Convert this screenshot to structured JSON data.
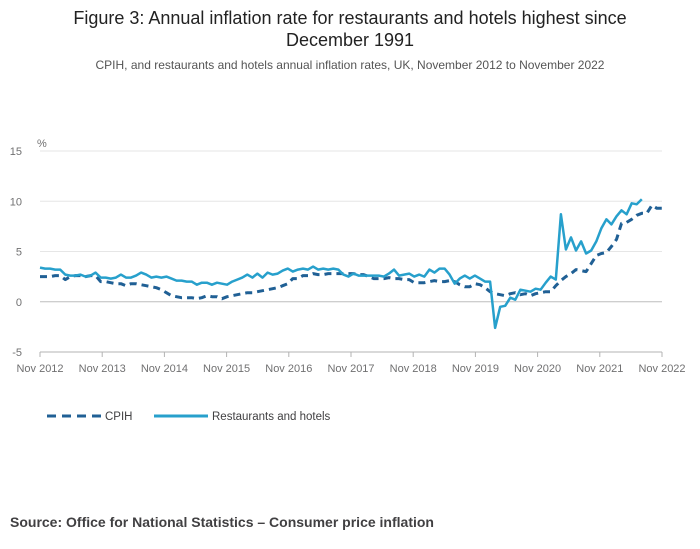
{
  "title_line1": "Figure 3: Annual inflation rate for restaurants and hotels highest since",
  "title_line2": "December 1991",
  "subtitle": "CPIH, and restaurants and hotels annual inflation rates, UK, November 2012 to November 2022",
  "source": "Source: Office for National Statistics – Consumer price inflation",
  "colors": {
    "cpih": "#206095",
    "restaurants": "#27A0CC",
    "axis": "#bebebe",
    "grid": "#e6e6e6"
  },
  "chart_data": {
    "type": "line",
    "title": "Figure 3: Annual inflation rate for restaurants and hotels highest since December 1991",
    "subtitle": "CPIH, and restaurants and hotels annual inflation rates, UK, November 2012 to November 2022",
    "ylabel": "%",
    "xlabel": "",
    "ylim": [
      -5,
      15
    ],
    "yticks": [
      -5,
      0,
      5,
      10,
      15
    ],
    "xticks": [
      "Nov 2012",
      "Nov 2013",
      "Nov 2014",
      "Nov 2015",
      "Nov 2016",
      "Nov 2017",
      "Nov 2018",
      "Nov 2019",
      "Nov 2020",
      "Nov 2021",
      "Nov 2022"
    ],
    "x_start": "Nov 2012",
    "x_end": "Nov 2022",
    "legend_position": "bottom-left",
    "grid": true,
    "series": [
      {
        "name": "CPIH",
        "style": "dashed",
        "values": [
          2.5,
          2.5,
          2.5,
          2.6,
          2.6,
          2.2,
          2.5,
          2.6,
          2.6,
          2.5,
          2.6,
          2.6,
          2.0,
          2.0,
          1.9,
          1.8,
          1.8,
          1.6,
          1.8,
          1.8,
          1.7,
          1.6,
          1.5,
          1.4,
          1.2,
          0.9,
          0.6,
          0.5,
          0.4,
          0.4,
          0.4,
          0.3,
          0.4,
          0.6,
          0.5,
          0.5,
          0.3,
          0.5,
          0.6,
          0.7,
          0.8,
          0.9,
          0.9,
          1.0,
          1.1,
          1.2,
          1.3,
          1.4,
          1.6,
          1.8,
          2.3,
          2.3,
          2.6,
          2.6,
          2.8,
          2.7,
          2.7,
          2.8,
          2.8,
          2.8,
          2.8,
          2.8,
          2.8,
          2.7,
          2.7,
          2.5,
          2.3,
          2.3,
          2.3,
          2.4,
          2.3,
          2.3,
          2.2,
          2.2,
          1.9,
          1.9,
          1.9,
          2.0,
          2.1,
          2.0,
          2.0,
          2.1,
          2.0,
          1.7,
          1.5,
          1.5,
          1.8,
          1.7,
          1.4,
          1.0,
          0.8,
          0.7,
          0.6,
          0.8,
          0.9,
          0.7,
          0.8,
          0.6,
          0.8,
          0.9,
          1.0,
          1.0,
          1.6,
          2.1,
          2.5,
          2.8,
          3.2,
          3.1,
          3.0,
          3.8,
          4.6,
          4.8,
          4.9,
          5.5,
          6.2,
          7.8,
          7.9,
          8.2,
          8.6,
          8.8,
          8.8,
          9.6,
          9.3,
          9.3
        ]
      },
      {
        "name": "Restaurants and hotels",
        "style": "solid",
        "values": [
          3.4,
          3.3,
          3.3,
          3.2,
          3.2,
          2.7,
          2.6,
          2.6,
          2.7,
          2.5,
          2.6,
          2.9,
          2.4,
          2.4,
          2.3,
          2.4,
          2.7,
          2.4,
          2.4,
          2.6,
          2.9,
          2.7,
          2.4,
          2.5,
          2.4,
          2.5,
          2.3,
          2.1,
          2.1,
          2.0,
          2.0,
          1.7,
          1.9,
          1.9,
          1.7,
          1.9,
          1.8,
          1.7,
          2.0,
          2.2,
          2.4,
          2.7,
          2.4,
          2.8,
          2.4,
          2.9,
          2.7,
          2.8,
          3.1,
          3.3,
          3.0,
          3.2,
          3.3,
          3.2,
          3.5,
          3.2,
          3.3,
          3.2,
          3.3,
          3.2,
          2.7,
          2.5,
          2.8,
          2.6,
          2.6,
          2.6,
          2.6,
          2.6,
          2.5,
          2.8,
          3.2,
          2.6,
          2.7,
          2.8,
          2.5,
          2.7,
          2.5,
          3.2,
          2.9,
          3.3,
          3.3,
          2.7,
          1.8,
          2.3,
          2.6,
          2.3,
          2.6,
          2.3,
          2.0,
          2.0,
          -2.6,
          -0.5,
          -0.4,
          0.4,
          0.2,
          1.2,
          1.1,
          1.0,
          1.3,
          1.2,
          1.9,
          2.5,
          2.2,
          8.7,
          5.2,
          6.4,
          5.1,
          6.0,
          4.8,
          5.1,
          6.0,
          7.3,
          8.2,
          7.7,
          8.5,
          9.1,
          8.7,
          9.8,
          9.7,
          10.2
        ]
      }
    ]
  }
}
